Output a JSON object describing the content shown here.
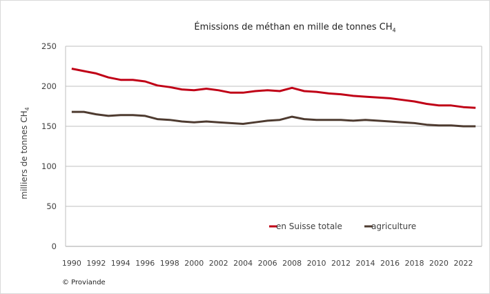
{
  "chart_data": {
    "type": "line",
    "title": "Émissions de méthan en mille de tonnes CH",
    "title_subscript": "4",
    "ylabel": "milliers de tonnes CH",
    "ylabel_subscript": "4",
    "xlabel": "",
    "ylim": [
      0,
      250
    ],
    "yticks": [
      0,
      50,
      100,
      150,
      200,
      250
    ],
    "grid": true,
    "legend_position": "bottom-right",
    "x": [
      1990,
      1991,
      1992,
      1993,
      1994,
      1995,
      1996,
      1997,
      1998,
      1999,
      2000,
      2001,
      2002,
      2003,
      2004,
      2005,
      2006,
      2007,
      2008,
      2009,
      2010,
      2011,
      2012,
      2013,
      2014,
      2015,
      2016,
      2017,
      2018,
      2019,
      2020,
      2021,
      2022,
      2023
    ],
    "xtick_labels": [
      "1990",
      "1992",
      "1994",
      "1996",
      "1998",
      "2000",
      "2002",
      "2004",
      "2006",
      "2008",
      "2010",
      "2012",
      "2014",
      "2016",
      "2018",
      "2020",
      "2022"
    ],
    "series": [
      {
        "name": "en Suisse totale",
        "color": "#c00016",
        "values": [
          222,
          219,
          216,
          211,
          208,
          208,
          206,
          201,
          199,
          196,
          195,
          197,
          195,
          192,
          192,
          194,
          195,
          194,
          198,
          194,
          193,
          191,
          190,
          188,
          187,
          186,
          185,
          183,
          181,
          178,
          176,
          176,
          174,
          173
        ]
      },
      {
        "name": "agriculture",
        "color": "#4e3b30",
        "values": [
          168,
          168,
          165,
          163,
          164,
          164,
          163,
          159,
          158,
          156,
          155,
          156,
          155,
          154,
          153,
          155,
          157,
          158,
          162,
          159,
          158,
          158,
          158,
          157,
          158,
          157,
          156,
          155,
          154,
          152,
          151,
          151,
          150,
          150
        ]
      }
    ]
  },
  "credit": "© Proviande"
}
